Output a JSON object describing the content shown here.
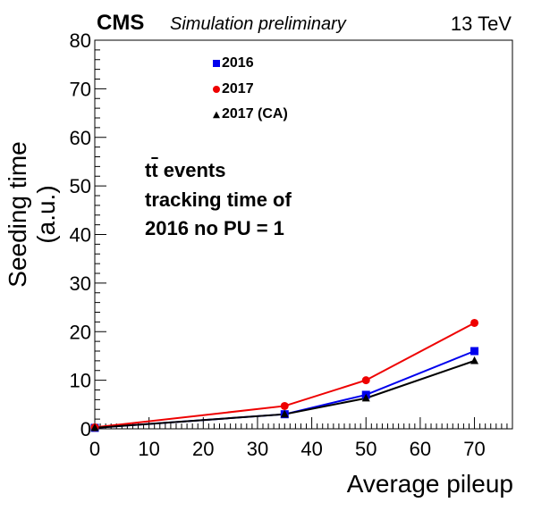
{
  "header": {
    "cms_label": "CMS",
    "preliminary_label": "Simulation preliminary",
    "energy_label": "13 TeV"
  },
  "annotation": {
    "line1_pre": "t",
    "line1_bar": "t",
    "line1_post": " events",
    "line2": "tracking time of",
    "line3": "2016 no PU = 1"
  },
  "chart_data": {
    "type": "line",
    "xlabel": "Average pileup",
    "ylabel": "Seeding time (a.u.)",
    "xlim": [
      0,
      77
    ],
    "ylim": [
      0,
      80
    ],
    "xticks": [
      0,
      10,
      20,
      30,
      40,
      50,
      60,
      70
    ],
    "yticks": [
      0,
      10,
      20,
      30,
      40,
      50,
      60,
      70,
      80
    ],
    "grid": false,
    "legend_position": "top-center",
    "series": [
      {
        "name": "2016",
        "color": "#0000ee",
        "marker": "square",
        "x": [
          0,
          35,
          50,
          70
        ],
        "y": [
          0.2,
          3.0,
          7.0,
          16.0
        ]
      },
      {
        "name": "2017",
        "color": "#ee0000",
        "marker": "circle",
        "x": [
          0,
          35,
          50,
          70
        ],
        "y": [
          0.3,
          4.7,
          10.0,
          21.8
        ]
      },
      {
        "name": "2017 (CA)",
        "color": "#000000",
        "marker": "triangle",
        "x": [
          0,
          35,
          50,
          70
        ],
        "y": [
          0.2,
          3.0,
          6.3,
          14.0
        ]
      }
    ]
  }
}
